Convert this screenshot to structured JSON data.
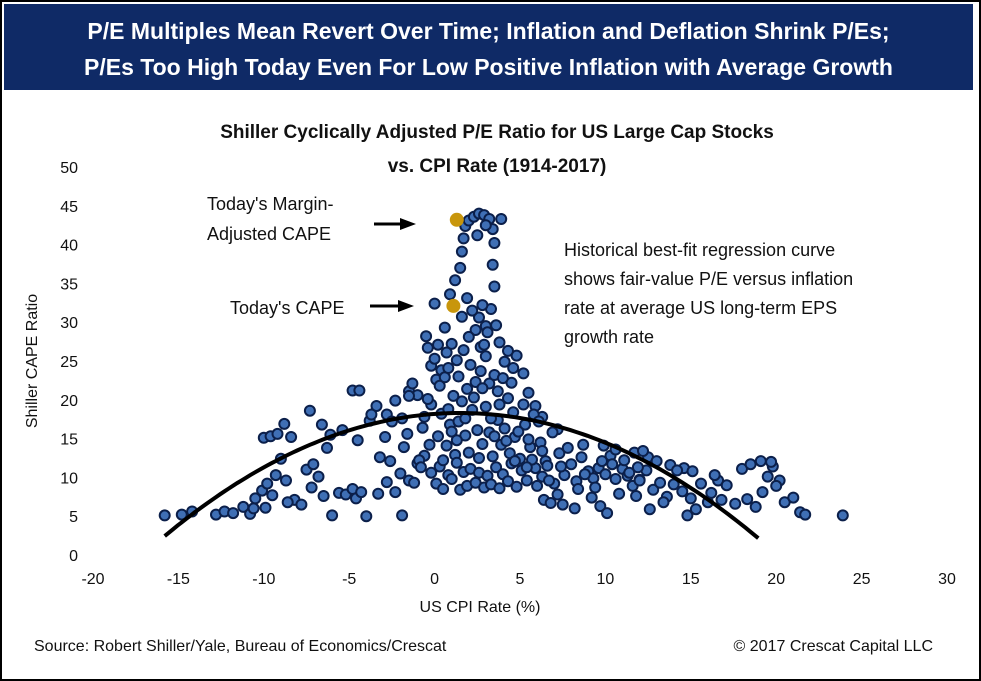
{
  "banner": {
    "line1": "P/E Multiples Mean Revert Over Time; Inflation and Deflation Shrink P/Es;",
    "line2": "P/Es Too High Today Even For Low Positive Inflation with Average Growth",
    "background_color": "#0f2a66"
  },
  "footer": {
    "source": "Source: Robert Shiller/Yale, Bureau of Economics/Crescat",
    "copyright": "© 2017 Crescat Capital LLC"
  },
  "chart_data": {
    "type": "scatter",
    "title_line1": "Shiller Cyclically Adjusted P/E Ratio for US Large Cap Stocks",
    "title_line2": "vs. CPI Rate (1914-2017)",
    "xlabel": "US CPI Rate (%)",
    "ylabel": "Shiller CAPE Ratio",
    "xlim": [
      -20,
      30
    ],
    "ylim": [
      0,
      50
    ],
    "x_ticks": [
      "-20",
      "-15",
      "-10",
      "-5",
      "0",
      "5",
      "10",
      "15",
      "20",
      "25",
      "30"
    ],
    "y_ticks": [
      "0",
      "5",
      "10",
      "15",
      "20",
      "25",
      "30",
      "35",
      "40",
      "45",
      "50"
    ],
    "grid": false,
    "point_color": "#3f6fb5",
    "point_edge_color": "#0b1f4a",
    "highlight_color": "#c8960c",
    "highlights": [
      {
        "x": 1.3,
        "y": 43.2
      },
      {
        "x": 1.1,
        "y": 32.1
      }
    ],
    "annotations": [
      {
        "lines": [
          "Today's Margin-",
          "Adjusted CAPE"
        ]
      },
      {
        "lines": [
          "Today's CAPE"
        ]
      },
      {
        "lines": [
          "Historical best-fit regression curve",
          "shows fair-value P/E versus inflation",
          "rate at average US long-term EPS",
          "growth rate"
        ]
      }
    ],
    "regression": {
      "x_from": -15.8,
      "x_to": 19,
      "peak_x": 1.5,
      "peak_y": 18.3,
      "curvature": 0.053
    },
    "points": [
      [
        -15.8,
        5.1
      ],
      [
        -14.8,
        5.2
      ],
      [
        -14.2,
        5.6
      ],
      [
        -12.8,
        5.2
      ],
      [
        -12.3,
        5.6
      ],
      [
        -11.2,
        6.2
      ],
      [
        -10.8,
        5.3
      ],
      [
        -10.5,
        7.3
      ],
      [
        -10.1,
        8.3
      ],
      [
        -9.8,
        9.2
      ],
      [
        -9.5,
        7.7
      ],
      [
        -9.3,
        10.3
      ],
      [
        -9.0,
        12.4
      ],
      [
        -8.7,
        9.6
      ],
      [
        -8.2,
        7.1
      ],
      [
        -7.8,
        6.5
      ],
      [
        -7.5,
        11.0
      ],
      [
        -7.2,
        8.7
      ],
      [
        -6.8,
        10.1
      ],
      [
        -6.5,
        7.6
      ],
      [
        -6.0,
        5.1
      ],
      [
        -5.6,
        8.0
      ],
      [
        -5.2,
        7.8
      ],
      [
        -4.8,
        8.5
      ],
      [
        -4.6,
        7.3
      ],
      [
        -4.3,
        8.1
      ],
      [
        -4.0,
        5.0
      ],
      [
        -3.3,
        7.9
      ],
      [
        -2.8,
        9.4
      ],
      [
        -2.3,
        8.1
      ],
      [
        -1.9,
        5.1
      ],
      [
        -1.5,
        9.6
      ],
      [
        -1.0,
        11.8
      ],
      [
        -0.6,
        12.8
      ],
      [
        -0.2,
        10.6
      ],
      [
        -10.0,
        15.1
      ],
      [
        -9.6,
        15.3
      ],
      [
        -9.2,
        15.6
      ],
      [
        -8.8,
        16.9
      ],
      [
        -8.4,
        15.2
      ],
      [
        -7.3,
        18.6
      ],
      [
        -6.6,
        16.8
      ],
      [
        -6.1,
        15.5
      ],
      [
        -5.4,
        16.1
      ],
      [
        -4.5,
        14.8
      ],
      [
        -3.8,
        17.3
      ],
      [
        -3.4,
        19.2
      ],
      [
        -2.8,
        18.1
      ],
      [
        -2.3,
        19.9
      ],
      [
        -1.9,
        17.6
      ],
      [
        -1.5,
        21.1
      ],
      [
        -1.0,
        20.6
      ],
      [
        -0.6,
        17.8
      ],
      [
        -0.2,
        19.4
      ],
      [
        -4.8,
        21.2
      ],
      [
        -4.4,
        21.2
      ],
      [
        -3.7,
        18.1
      ],
      [
        -2.9,
        15.2
      ],
      [
        -1.5,
        20.5
      ],
      [
        -10.6,
        6.0
      ],
      [
        -11.8,
        5.4
      ],
      [
        -9.9,
        6.1
      ],
      [
        -8.6,
        6.8
      ],
      [
        -7.1,
        11.7
      ],
      [
        -6.3,
        13.8
      ],
      [
        -2.6,
        12.1
      ],
      [
        -1.8,
        13.9
      ],
      [
        -0.9,
        12.2
      ],
      [
        -0.5,
        28.2
      ],
      [
        -0.4,
        26.7
      ],
      [
        -0.2,
        24.4
      ],
      [
        0.0,
        25.3
      ],
      [
        0.0,
        32.4
      ],
      [
        0.2,
        27.1
      ],
      [
        0.4,
        23.8
      ],
      [
        0.6,
        29.3
      ],
      [
        0.9,
        33.6
      ],
      [
        1.2,
        35.4
      ],
      [
        1.5,
        37.0
      ],
      [
        1.6,
        39.1
      ],
      [
        1.7,
        40.8
      ],
      [
        1.8,
        42.4
      ],
      [
        2.0,
        43.1
      ],
      [
        2.3,
        43.6
      ],
      [
        2.6,
        44.0
      ],
      [
        2.9,
        43.8
      ],
      [
        3.2,
        43.3
      ],
      [
        3.4,
        42.0
      ],
      [
        3.5,
        40.2
      ],
      [
        3.4,
        37.4
      ],
      [
        3.5,
        34.6
      ],
      [
        3.3,
        31.7
      ],
      [
        3.0,
        29.5
      ],
      [
        2.8,
        32.2
      ],
      [
        2.6,
        30.6
      ],
      [
        2.2,
        31.5
      ],
      [
        1.9,
        33.1
      ],
      [
        1.6,
        30.7
      ],
      [
        2.4,
        29.0
      ],
      [
        2.7,
        26.8
      ],
      [
        3.1,
        28.7
      ],
      [
        3.8,
        27.4
      ],
      [
        4.1,
        24.9
      ],
      [
        4.5,
        22.2
      ],
      [
        4.8,
        25.7
      ],
      [
        5.2,
        23.4
      ],
      [
        5.5,
        20.9
      ],
      [
        5.9,
        19.2
      ],
      [
        6.3,
        17.8
      ],
      [
        3.9,
        43.3
      ],
      [
        3.0,
        42.5
      ],
      [
        2.5,
        41.2
      ],
      [
        0.1,
        22.6
      ],
      [
        0.3,
        21.8
      ],
      [
        0.6,
        22.9
      ],
      [
        0.8,
        24.1
      ],
      [
        1.0,
        27.2
      ],
      [
        1.3,
        25.1
      ],
      [
        1.4,
        23.0
      ],
      [
        1.7,
        26.4
      ],
      [
        2.0,
        28.1
      ],
      [
        2.1,
        24.5
      ],
      [
        2.4,
        22.3
      ],
      [
        2.7,
        23.7
      ],
      [
        3.0,
        25.6
      ],
      [
        3.2,
        22.1
      ],
      [
        3.5,
        23.2
      ],
      [
        3.7,
        21.1
      ],
      [
        4.0,
        22.8
      ],
      [
        4.3,
        20.2
      ],
      [
        4.6,
        18.4
      ],
      [
        0.2,
        15.3
      ],
      [
        0.4,
        18.2
      ],
      [
        0.7,
        14.1
      ],
      [
        0.9,
        16.8
      ],
      [
        1.2,
        12.9
      ],
      [
        1.4,
        17.2
      ],
      [
        1.6,
        19.8
      ],
      [
        1.8,
        15.4
      ],
      [
        2.0,
        13.2
      ],
      [
        2.2,
        18.7
      ],
      [
        2.5,
        16.1
      ],
      [
        2.8,
        14.3
      ],
      [
        3.0,
        19.1
      ],
      [
        3.2,
        15.8
      ],
      [
        3.4,
        12.7
      ],
      [
        3.7,
        17.4
      ],
      [
        3.9,
        14.2
      ],
      [
        4.1,
        16.3
      ],
      [
        4.4,
        13.1
      ],
      [
        4.7,
        15.2
      ],
      [
        5.0,
        12.4
      ],
      [
        5.3,
        16.8
      ],
      [
        5.6,
        13.9
      ],
      [
        5.9,
        11.2
      ],
      [
        6.2,
        14.5
      ],
      [
        6.5,
        12.1
      ],
      [
        0.1,
        9.2
      ],
      [
        0.3,
        11.4
      ],
      [
        0.5,
        8.5
      ],
      [
        0.8,
        10.3
      ],
      [
        1.0,
        9.8
      ],
      [
        1.3,
        11.9
      ],
      [
        1.5,
        8.4
      ],
      [
        1.7,
        10.7
      ],
      [
        1.9,
        8.9
      ],
      [
        2.1,
        11.1
      ],
      [
        2.4,
        9.3
      ],
      [
        2.6,
        10.6
      ],
      [
        2.9,
        8.7
      ],
      [
        3.1,
        10.2
      ],
      [
        3.3,
        9.1
      ],
      [
        3.6,
        11.3
      ],
      [
        3.8,
        8.6
      ],
      [
        4.0,
        10.4
      ],
      [
        4.3,
        9.5
      ],
      [
        4.5,
        11.8
      ],
      [
        4.8,
        8.8
      ],
      [
        5.1,
        10.9
      ],
      [
        5.4,
        9.6
      ],
      [
        5.7,
        12.3
      ],
      [
        6.0,
        8.9
      ],
      [
        6.3,
        10.1
      ],
      [
        6.6,
        11.5
      ],
      [
        7.0,
        9.2
      ],
      [
        7.3,
        13.1
      ],
      [
        7.6,
        10.3
      ],
      [
        8.0,
        11.7
      ],
      [
        8.3,
        9.5
      ],
      [
        8.6,
        12.6
      ],
      [
        9.0,
        10.8
      ],
      [
        9.3,
        9.9
      ],
      [
        9.6,
        11.2
      ],
      [
        10.0,
        10.4
      ],
      [
        10.3,
        12.8
      ],
      [
        10.6,
        9.8
      ],
      [
        11.0,
        11.1
      ],
      [
        11.3,
        10.2
      ],
      [
        11.6,
        8.9
      ],
      [
        12.0,
        9.7
      ],
      [
        12.4,
        10.9
      ],
      [
        12.8,
        8.4
      ],
      [
        13.2,
        9.3
      ],
      [
        13.6,
        7.5
      ],
      [
        14.0,
        9.1
      ],
      [
        14.5,
        8.2
      ],
      [
        15.0,
        7.3
      ],
      [
        15.3,
        5.9
      ],
      [
        16.0,
        6.8
      ],
      [
        16.8,
        7.1
      ],
      [
        17.6,
        6.6
      ],
      [
        18.3,
        7.2
      ],
      [
        18.8,
        6.2
      ],
      [
        19.2,
        8.1
      ],
      [
        19.5,
        10.1
      ],
      [
        19.8,
        11.4
      ],
      [
        20.2,
        9.6
      ],
      [
        20.5,
        6.8
      ],
      [
        21.0,
        7.4
      ],
      [
        21.4,
        5.5
      ],
      [
        21.7,
        5.2
      ],
      [
        23.9,
        5.1
      ],
      [
        18.0,
        11.1
      ],
      [
        18.5,
        11.7
      ],
      [
        19.1,
        12.1
      ],
      [
        19.7,
        12.0
      ],
      [
        20.0,
        8.9
      ],
      [
        8.2,
        6.0
      ],
      [
        9.7,
        6.3
      ],
      [
        10.1,
        5.4
      ],
      [
        11.8,
        7.6
      ],
      [
        12.6,
        5.9
      ],
      [
        13.4,
        6.8
      ],
      [
        14.8,
        5.1
      ],
      [
        16.2,
        8.0
      ],
      [
        6.4,
        7.1
      ],
      [
        6.8,
        6.7
      ],
      [
        7.2,
        7.8
      ],
      [
        7.5,
        6.5
      ],
      [
        9.2,
        7.4
      ],
      [
        10.8,
        7.9
      ],
      [
        8.7,
        14.2
      ],
      [
        7.8,
        13.8
      ],
      [
        7.2,
        16.2
      ],
      [
        6.9,
        15.8
      ],
      [
        5.8,
        18.1
      ],
      [
        6.1,
        17.2
      ],
      [
        5.2,
        19.4
      ],
      [
        6.3,
        13.4
      ],
      [
        9.9,
        14.1
      ],
      [
        11.7,
        13.2
      ],
      [
        12.5,
        12.6
      ],
      [
        13.0,
        12.1
      ],
      [
        14.6,
        11.2
      ],
      [
        15.1,
        10.8
      ],
      [
        16.6,
        9.6
      ],
      [
        17.1,
        9.0
      ],
      [
        13.8,
        11.6
      ],
      [
        12.2,
        13.4
      ],
      [
        8.4,
        8.5
      ],
      [
        9.4,
        8.7
      ],
      [
        10.6,
        13.6
      ],
      [
        11.1,
        12.2
      ],
      [
        11.9,
        11.3
      ],
      [
        14.2,
        10.9
      ],
      [
        15.6,
        9.2
      ],
      [
        16.4,
        10.3
      ],
      [
        -3.2,
        12.6
      ],
      [
        -2.0,
        10.5
      ],
      [
        -1.2,
        9.3
      ],
      [
        -0.8,
        11.3
      ],
      [
        -0.3,
        14.2
      ],
      [
        -1.6,
        15.6
      ],
      [
        -2.5,
        17.2
      ],
      [
        -0.7,
        16.4
      ],
      [
        -1.3,
        22.1
      ],
      [
        -0.4,
        20.1
      ],
      [
        0.5,
        12.2
      ],
      [
        0.7,
        26.1
      ],
      [
        1.1,
        20.5
      ],
      [
        1.3,
        14.8
      ],
      [
        1.9,
        21.4
      ],
      [
        2.3,
        20.3
      ],
      [
        2.8,
        21.5
      ],
      [
        3.3,
        17.6
      ],
      [
        3.8,
        19.4
      ],
      [
        4.2,
        14.7
      ],
      [
        4.9,
        15.9
      ],
      [
        5.5,
        14.9
      ],
      [
        4.6,
        24.1
      ],
      [
        4.3,
        26.3
      ],
      [
        3.6,
        29.6
      ],
      [
        2.9,
        27.1
      ],
      [
        0.8,
        18.8
      ],
      [
        1.0,
        15.9
      ],
      [
        1.8,
        17.6
      ],
      [
        2.6,
        12.5
      ],
      [
        3.5,
        15.3
      ],
      [
        4.7,
        12.1
      ],
      [
        5.4,
        11.3
      ],
      [
        6.7,
        9.6
      ],
      [
        7.4,
        11.4
      ],
      [
        8.8,
        10.4
      ],
      [
        9.8,
        12.1
      ],
      [
        10.4,
        11.7
      ],
      [
        11.4,
        10.6
      ],
      [
        12.0,
        9.6
      ]
    ]
  }
}
